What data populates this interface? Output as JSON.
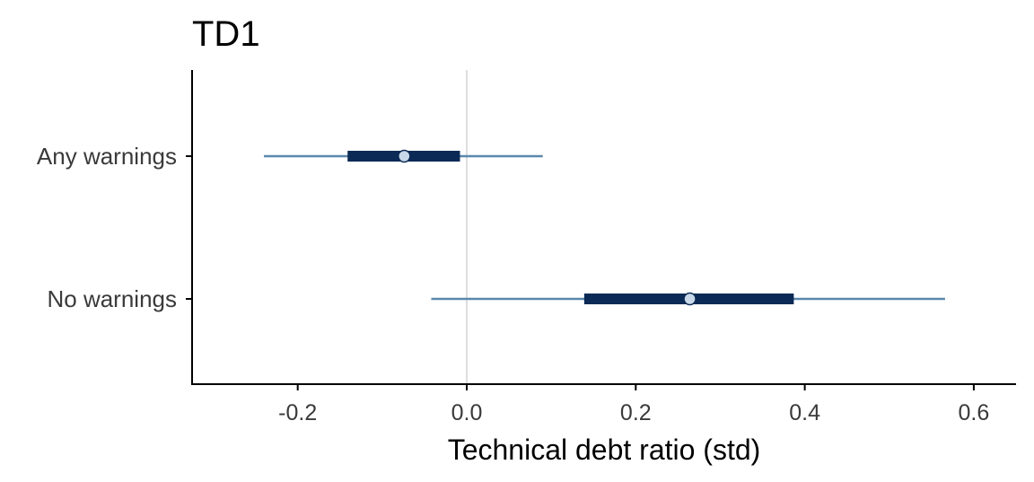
{
  "chart_data": {
    "type": "interval",
    "title": "TD1",
    "xlabel": "Technical debt ratio (std)",
    "ylabel": "",
    "xlim": [
      -0.325,
      0.65
    ],
    "xticks": [
      -0.2,
      0.0,
      0.2,
      0.4,
      0.6
    ],
    "xtick_labels": [
      "-0.2",
      "0.0",
      "0.2",
      "0.4",
      "0.6"
    ],
    "reference_line_x": 0.0,
    "grid": false,
    "categories": [
      "Any warnings",
      "No warnings"
    ],
    "estimates": [
      {
        "label": "Any warnings",
        "point": -0.074,
        "inner": [
          -0.141,
          -0.008
        ],
        "outer": [
          -0.24,
          0.09
        ]
      },
      {
        "label": "No warnings",
        "point": 0.264,
        "inner": [
          0.139,
          0.387
        ],
        "outer": [
          -0.042,
          0.566
        ]
      }
    ],
    "colors": {
      "point_fill": "#c8d8e8",
      "inner_interval": "#0b2a55",
      "outer_interval": "#5a88ad",
      "reference_line": "#dedede",
      "axis": "#000000"
    }
  }
}
